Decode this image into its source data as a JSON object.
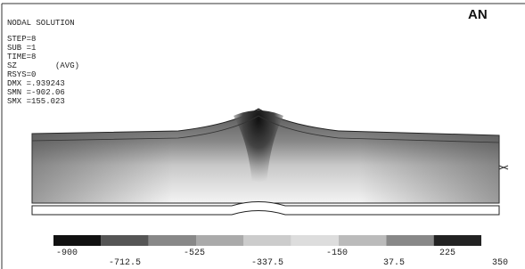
{
  "header": {
    "title": "NODAL SOLUTION",
    "lines": [
      "STEP=8",
      "SUB =1",
      "TIME=8",
      "SZ        (AVG)",
      "RSYS=0",
      "DMX =.939243",
      "SMN =-902.06",
      "SMX =155.023"
    ]
  },
  "logo": "AN",
  "legend": {
    "labels": [
      "-900",
      "-712.5",
      "-525",
      "-337.5",
      "-150",
      "37.5",
      "225",
      "350"
    ]
  }
}
